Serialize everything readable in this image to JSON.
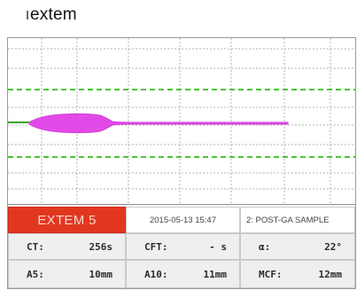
{
  "title": "extem",
  "panel": {
    "trace_color": "#e24ae8",
    "green_dashed_color": "#49c633",
    "grid_color": "#a0a0a0",
    "header_bg": "#e2371f"
  },
  "header": {
    "test_name": "EXTEM 5",
    "timestamp": "2015-05-13  15:47",
    "sample": "2: POST-GA SAMPLE"
  },
  "metrics": [
    {
      "label": "CT:",
      "value": "256s"
    },
    {
      "label": "CFT:",
      "value": "- s"
    },
    {
      "label": "α:",
      "value": "22°"
    },
    {
      "label": "A5:",
      "value": "10mm"
    },
    {
      "label": "A10:",
      "value": "11mm"
    },
    {
      "label": "MCF:",
      "value": "12mm"
    }
  ]
}
